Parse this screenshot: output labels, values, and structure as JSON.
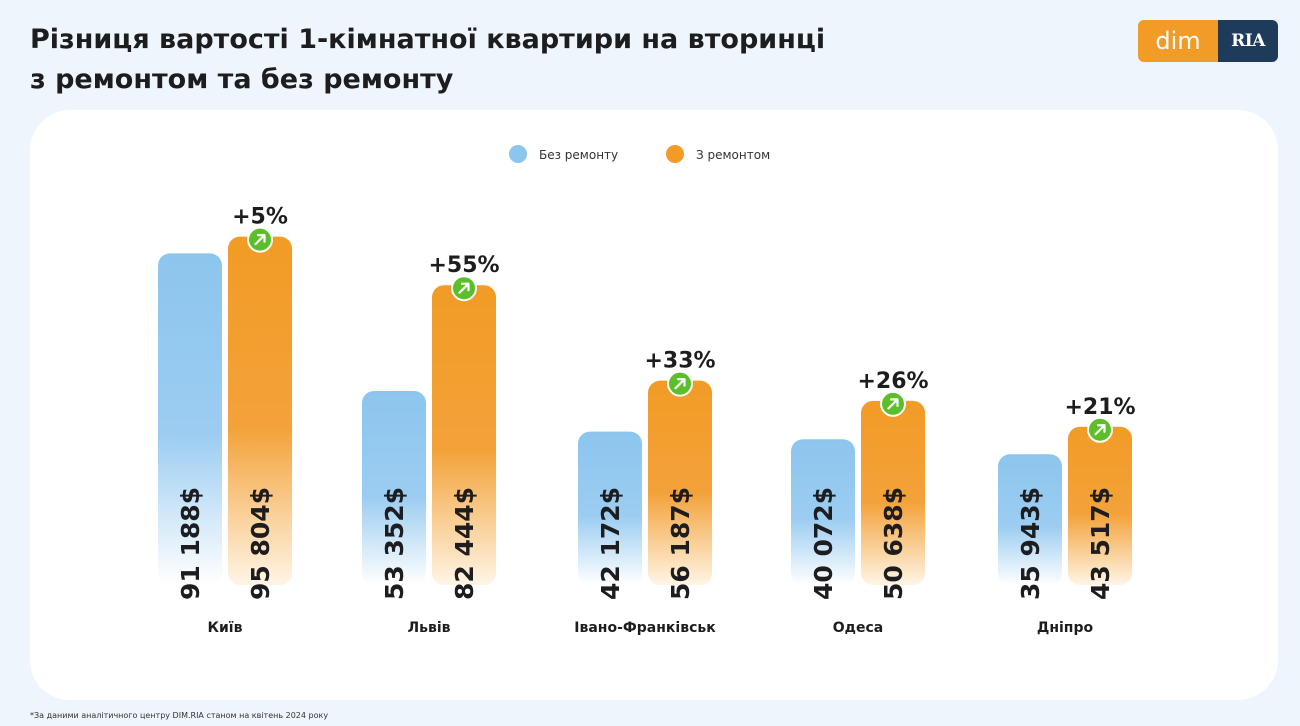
{
  "title": {
    "line1": "Різниця вартості 1-кімнатної квартири на вторинці",
    "line2": "з ремонтом та без ремонту"
  },
  "logo": {
    "left_text": "dim",
    "right_text": "RIA"
  },
  "footnote": "*За даними аналітичного центру DIM.RIA станом на квітень 2024 року",
  "chart_data": {
    "type": "bar",
    "title": "Різниця вартості 1-кімнатної квартири на вторинці з ремонтом та без ремонту",
    "categories": [
      "Київ",
      "Львів",
      "Івано-Франківськ",
      "Одеса",
      "Дніпро"
    ],
    "series": [
      {
        "name": "Без ремонту",
        "values": [
          91188,
          53352,
          42172,
          40072,
          35943
        ],
        "labels": [
          "91 188$",
          "53 352$",
          "42 172$",
          "40 072$",
          "35 943$"
        ],
        "color": "#8cc5ee"
      },
      {
        "name": "З ремонтом",
        "values": [
          95804,
          82444,
          56187,
          50638,
          43517
        ],
        "labels": [
          "95 804$",
          "82 444$",
          "56 187$",
          "50 638$",
          "43 517$"
        ],
        "color": "#f29b26"
      }
    ],
    "differences": [
      "+5%",
      "+55%",
      "+33%",
      "+26%",
      "+21%"
    ],
    "legend": "top-center",
    "grid": false,
    "ylim": [
      0,
      110000
    ],
    "accent_color": "#5cbf2a",
    "label_color": "#1d1d1f"
  }
}
